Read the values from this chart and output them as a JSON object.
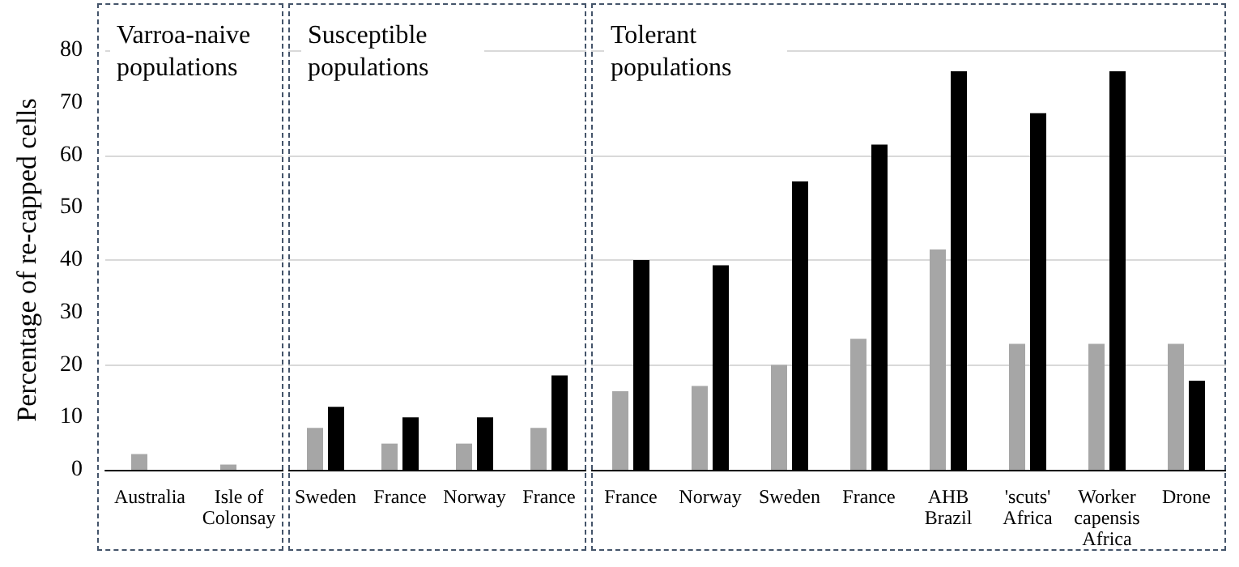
{
  "chart_data": [
    {
      "type": "bar",
      "title": "Varroa-naive populations",
      "ylabel": "Percentage of re-capped cells",
      "categories": [
        "Australia",
        "Isle of\nColonsay"
      ],
      "series": [
        {
          "color": "#a6a6a6",
          "values": [
            3,
            1
          ]
        },
        {
          "color": "#000000",
          "values": [
            null,
            null
          ]
        }
      ],
      "ylim": [
        0,
        80
      ],
      "yticks": [
        0,
        10,
        20,
        30,
        40,
        50,
        60,
        70,
        80
      ],
      "grid": "y"
    },
    {
      "type": "bar",
      "title": "Susceptible populations",
      "categories": [
        "Sweden",
        "France",
        "Norway",
        "France"
      ],
      "series": [
        {
          "color": "#a6a6a6",
          "values": [
            8,
            5,
            5,
            8
          ]
        },
        {
          "color": "#000000",
          "values": [
            12,
            10,
            10,
            18
          ]
        }
      ],
      "ylim": [
        0,
        80
      ],
      "yticks": [
        0,
        10,
        20,
        30,
        40,
        50,
        60,
        70,
        80
      ],
      "grid": "y",
      "tick_labels": "x"
    },
    {
      "type": "bar",
      "title": "Tolerant populations",
      "categories": [
        "France",
        "Norway",
        "Sweden",
        "France",
        "AHB\nBrazil",
        "'scuts'\nAfrica",
        "Worker\ncapensis\nAfrica",
        "Drone"
      ],
      "series": [
        {
          "color": "#a6a6a6",
          "values": [
            15,
            16,
            20,
            25,
            42,
            24,
            24,
            24
          ]
        },
        {
          "color": "#000000",
          "values": [
            40,
            39,
            55,
            62,
            76,
            68,
            76,
            17
          ]
        }
      ],
      "ylim": [
        0,
        80
      ],
      "yticks": [
        0,
        10,
        20,
        30,
        40,
        50,
        60,
        70,
        80
      ],
      "grid": "y",
      "tick_labels": "x"
    }
  ]
}
